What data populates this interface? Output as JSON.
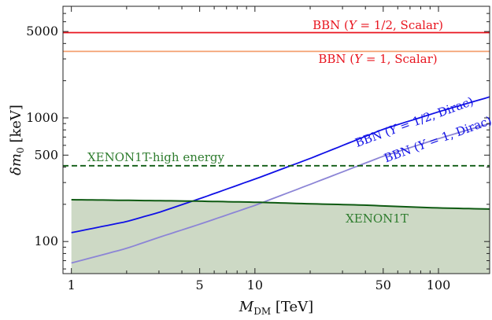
{
  "chart_data": {
    "type": "line",
    "title": "",
    "xlabel": "M_DM [TeV]",
    "ylabel": "δm_0 [keV]",
    "xscale": "log",
    "yscale": "log",
    "xlim": [
      0.9,
      190
    ],
    "ylim": [
      55,
      8000
    ],
    "grid": false,
    "legend": "none",
    "x_ticks": [
      1,
      5,
      10,
      50,
      100
    ],
    "y_ticks": [
      100,
      500,
      1000,
      5000
    ],
    "colors": {
      "red": "#e8141e",
      "orange": "#f4a070",
      "blue": "#1010e6",
      "lavender": "#8c85d6",
      "green": "#0e5a12",
      "fill": "#cdd9c5",
      "label_green": "#2f7d2f"
    },
    "series": [
      {
        "label": "BBN (Y = 1/2, Scalar)",
        "color": "#e8141e",
        "style": "solid",
        "x": [
          0.9,
          190
        ],
        "y": [
          4900,
          4900
        ]
      },
      {
        "label": "BBN (Y = 1, Scalar)",
        "color": "#f4a070",
        "style": "solid",
        "x": [
          0.9,
          190
        ],
        "y": [
          3450,
          3450
        ]
      },
      {
        "label": "BBN (Y = 1/2, Dirac)",
        "color": "#1010e6",
        "style": "solid",
        "x": [
          1,
          2,
          3,
          5,
          10,
          20,
          50,
          100,
          190
        ],
        "y": [
          118,
          145,
          172,
          222,
          320,
          470,
          810,
          1120,
          1480
        ]
      },
      {
        "label": "BBN (Y = 1, Dirac)",
        "color": "#8c85d6",
        "style": "solid",
        "x": [
          1,
          2,
          3,
          5,
          10,
          20,
          50,
          100,
          190
        ],
        "y": [
          67,
          88,
          108,
          138,
          196,
          290,
          490,
          680,
          900
        ]
      },
      {
        "label": "XENON1T-high energy",
        "color": "#0e5a12",
        "style": "dashed",
        "x": [
          0.9,
          190
        ],
        "y": [
          410,
          410
        ]
      },
      {
        "label": "XENON1T",
        "color": "#0e5a12",
        "style": "solid",
        "filled": true,
        "x": [
          1,
          5,
          10,
          20,
          40,
          60,
          80,
          100,
          190
        ],
        "y": [
          218,
          212,
          208,
          202,
          197,
          192,
          189,
          187,
          183
        ]
      }
    ],
    "annotations": [
      {
        "series": 0,
        "text_parts": [
          {
            "t": "BBN ("
          },
          {
            "t": "Y",
            "italic": true
          },
          {
            "t": " = 1/2, Scalar)"
          }
        ]
      },
      {
        "series": 1,
        "text_parts": [
          {
            "t": "BBN ("
          },
          {
            "t": "Y",
            "italic": true
          },
          {
            "t": " = 1, Scalar)"
          }
        ]
      },
      {
        "series": 2,
        "text_parts": [
          {
            "t": "BBN ("
          },
          {
            "t": "Y",
            "italic": true
          },
          {
            "t": " = 1/2, Dirac)"
          }
        ]
      },
      {
        "series": 3,
        "text_parts": [
          {
            "t": "BBN ("
          },
          {
            "t": "Y",
            "italic": true
          },
          {
            "t": " = 1, Dirac)"
          }
        ]
      },
      {
        "series": 4,
        "text_parts": [
          {
            "t": "XENON1T-high energy"
          }
        ]
      },
      {
        "series": 5,
        "text_parts": [
          {
            "t": "XENON1T"
          }
        ]
      }
    ]
  }
}
